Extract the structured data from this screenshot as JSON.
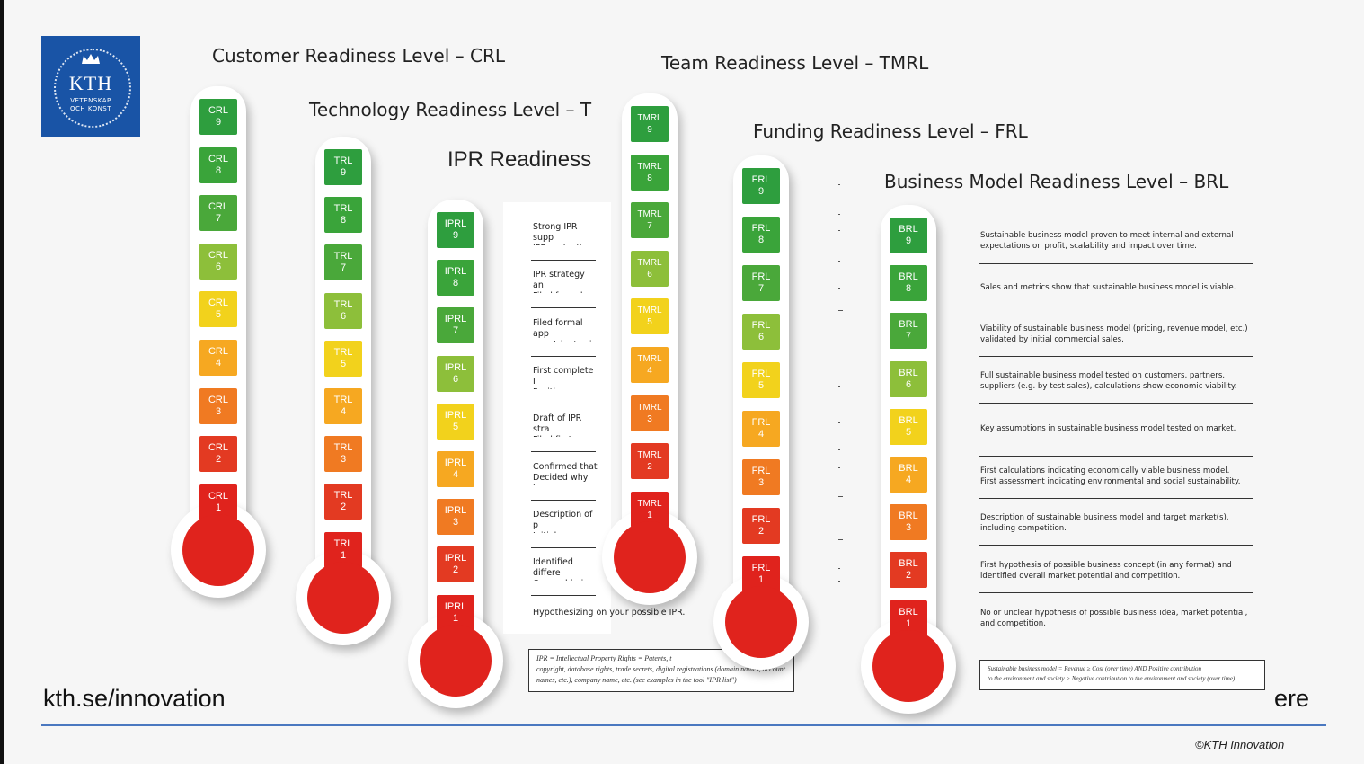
{
  "logo": {
    "name": "KTH",
    "line1": "VETENSKAP",
    "line2": "OCH KONST"
  },
  "headings": {
    "crl": "Customer Readiness Level – CRL",
    "trl": "Technology Readiness Level – T",
    "iprl": "IPR Readiness",
    "tmrl": "Team Readiness Level – TMRL",
    "frl": "Funding Readiness Level – FRL",
    "brl": "Business Model Readiness Level – BRL"
  },
  "colors": {
    "9": "#2e9e3e",
    "8": "#3aa43a",
    "7": "#4aa83a",
    "6": "#8dbf3a",
    "5": "#f2d21c",
    "4": "#f6a821",
    "3": "#f07a22",
    "2": "#e33a22",
    "1": "#e0231d",
    "bulb": "#e0231d"
  },
  "thermometers": [
    {
      "prefix": "CRL",
      "levels": [
        "9",
        "8",
        "7",
        "6",
        "5",
        "4",
        "3",
        "2",
        "1"
      ]
    },
    {
      "prefix": "TRL",
      "levels": [
        "9",
        "8",
        "7",
        "6",
        "5",
        "4",
        "3",
        "2",
        "1"
      ]
    },
    {
      "prefix": "IPRL",
      "levels": [
        "9",
        "8",
        "7",
        "6",
        "5",
        "4",
        "3",
        "2",
        "1"
      ]
    },
    {
      "prefix": "TMRL",
      "levels": [
        "9",
        "8",
        "7",
        "6",
        "5",
        "4",
        "3",
        "2",
        "1"
      ]
    },
    {
      "prefix": "FRL",
      "levels": [
        "9",
        "8",
        "7",
        "6",
        "5",
        "4",
        "3",
        "2",
        "1"
      ]
    },
    {
      "prefix": "BRL",
      "levels": [
        "9",
        "8",
        "7",
        "6",
        "5",
        "4",
        "3",
        "2",
        "1"
      ]
    }
  ],
  "iprl_descriptions": [
    "Strong IPR supp\nIPR protection g",
    "IPR strategy an\nFiled formal app",
    "Filed formal app\ncountries/region",
    "First complete I\nPositive respon",
    "Draft of IPR stra\nFiled first forma",
    "Confirmed that\nDecided why to",
    "Description of p\nInitial evaluation",
    "Identified differe\nOwnership is cl",
    "Hypothesizing on your possible IPR."
  ],
  "iprl_box": "IPR = Intellectual Property Rights = Patents, t\ncopyright, database rights, trade secrets, digital registrations (domain names, account\nnames, etc.), company name, etc. (see examples in the tool \"IPR list\")",
  "brl_descriptions": [
    "Sustainable business model proven to meet internal and external\nexpectations on profit, scalability and impact over time.",
    "Sales and metrics show that sustainable business model is viable.",
    "Viability of sustainable business model (pricing, revenue model, etc.)\nvalidated by initial commercial sales.",
    "Full sustainable business model tested on customers, partners,\nsuppliers (e.g. by test sales), calculations show economic viability.",
    "Key assumptions in sustainable business model tested on market.",
    "First calculations indicating economically viable business model.\nFirst assessment indicating environmental and social sustainability.",
    "Description of sustainable business model and target market(s),\nincluding competition.",
    "First hypothesis of possible business concept (in any format) and\nidentified overall market potential and competition.",
    "No or unclear hypothesis of possible business idea, market potential,\nand competition."
  ],
  "brl_box": "Sustainable business model = Revenue ≥ Cost (over time) AND Positive contribution\nto the environment and society > Negative contribution to the environment and society (over time)",
  "footer": {
    "link": "kth.se/innovation",
    "right_fragment": "ere",
    "copyright": "©KTH Innovation"
  }
}
